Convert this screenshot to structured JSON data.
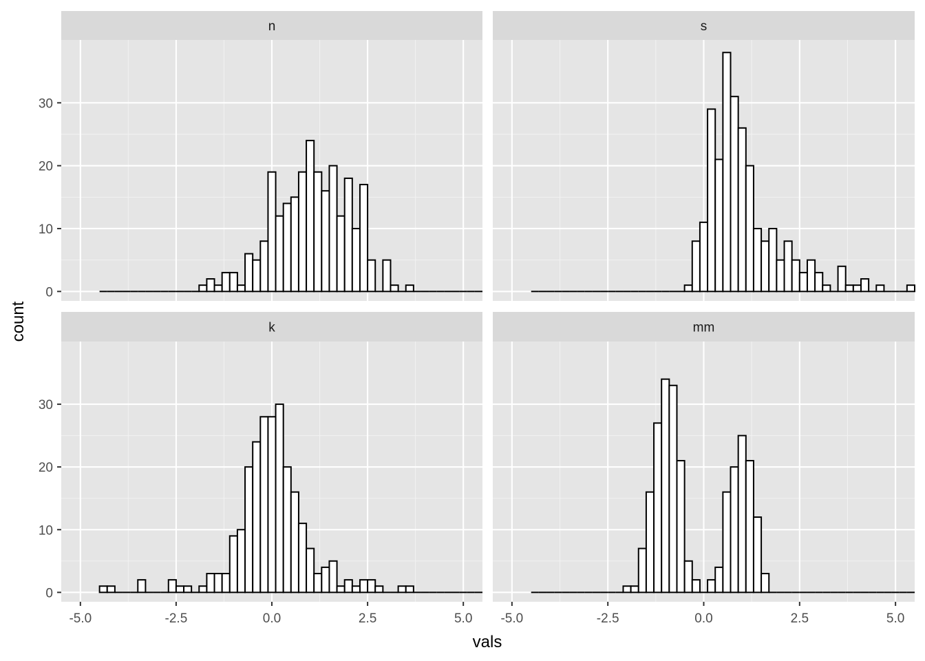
{
  "chart_data": {
    "type": "bar",
    "facet_layout": "2x2",
    "xlabel": "vals",
    "ylabel": "count",
    "xlim": [
      -5.5,
      5.5
    ],
    "ylim": [
      -1.5,
      40
    ],
    "x_ticks": [
      -5.0,
      -2.5,
      0.0,
      2.5,
      5.0
    ],
    "x_tick_labels": [
      "-5.0",
      "-2.5",
      "0.0",
      "2.5",
      "5.0"
    ],
    "y_ticks": [
      0,
      10,
      20,
      30
    ],
    "y_tick_labels": [
      "0",
      "10",
      "20",
      "30"
    ],
    "grid": true,
    "bin_start": -4.5,
    "bin_width": 0.2,
    "bin_count": 50,
    "bar_fill": "#ffffff",
    "bar_stroke": "#000000",
    "panel_background": "#e5e5e5",
    "strip_background": "#d9d9d9",
    "facets": [
      {
        "strip_label": "n",
        "counts": [
          0,
          0,
          0,
          0,
          0,
          0,
          0,
          0,
          0,
          0,
          0,
          0,
          0,
          1,
          2,
          1,
          3,
          3,
          1,
          6,
          5,
          8,
          19,
          12,
          14,
          15,
          19,
          24,
          19,
          16,
          20,
          12,
          18,
          10,
          17,
          5,
          0,
          5,
          1,
          0,
          1,
          0,
          0,
          0,
          0,
          0,
          0,
          0,
          0,
          0
        ]
      },
      {
        "strip_label": "s",
        "counts": [
          0,
          0,
          0,
          0,
          0,
          0,
          0,
          0,
          0,
          0,
          0,
          0,
          0,
          0,
          0,
          0,
          0,
          0,
          0,
          0,
          1,
          8,
          11,
          29,
          21,
          38,
          31,
          26,
          20,
          10,
          8,
          10,
          5,
          8,
          5,
          3,
          5,
          3,
          1,
          0,
          4,
          1,
          1,
          2,
          0,
          1,
          0,
          0,
          0,
          1
        ]
      },
      {
        "strip_label": "k",
        "counts": [
          1,
          1,
          0,
          0,
          0,
          2,
          0,
          0,
          0,
          2,
          1,
          1,
          0,
          1,
          3,
          3,
          3,
          9,
          10,
          20,
          24,
          28,
          28,
          30,
          20,
          16,
          11,
          7,
          3,
          4,
          5,
          1,
          2,
          1,
          2,
          2,
          1,
          0,
          0,
          1,
          1,
          0,
          0,
          0,
          0,
          0,
          0,
          0,
          0,
          0
        ]
      },
      {
        "strip_label": "mm",
        "counts": [
          0,
          0,
          0,
          0,
          0,
          0,
          0,
          0,
          0,
          0,
          0,
          0,
          1,
          1,
          7,
          16,
          27,
          34,
          33,
          21,
          5,
          2,
          0,
          2,
          4,
          16,
          20,
          25,
          21,
          12,
          3,
          0,
          0,
          0,
          0,
          0,
          0,
          0,
          0,
          0,
          0,
          0,
          0,
          0,
          0,
          0,
          0,
          0,
          0,
          0
        ]
      }
    ]
  }
}
